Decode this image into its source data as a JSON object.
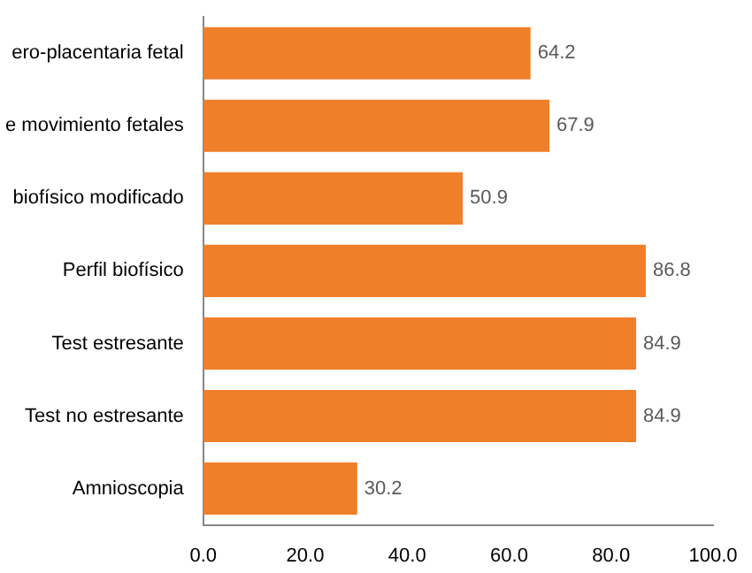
{
  "chart_data": {
    "type": "bar",
    "orientation": "horizontal",
    "categories": [
      "ero-placentaria fetal",
      "e movimiento fetales",
      "biofísico modificado",
      "Perfil biofísico",
      "Test estresante",
      "Test no estresante",
      "Amnioscopia"
    ],
    "values": [
      64.2,
      67.9,
      50.9,
      86.8,
      84.9,
      84.9,
      30.2
    ],
    "color": "#f07f2a",
    "xlim": [
      0,
      100
    ],
    "xticks": [
      {
        "value": 0,
        "label": "0.0"
      },
      {
        "value": 20,
        "label": "20.0"
      },
      {
        "value": 40,
        "label": "40.0"
      },
      {
        "value": 60,
        "label": "60.0"
      },
      {
        "value": 80,
        "label": "80.0"
      },
      {
        "value": 100,
        "label": "100.0"
      }
    ],
    "value_labels": [
      "64.2",
      "67.9",
      "50.9",
      "86.8",
      "84.9",
      "84.9",
      "30.2"
    ],
    "grid": false,
    "legend": false
  }
}
